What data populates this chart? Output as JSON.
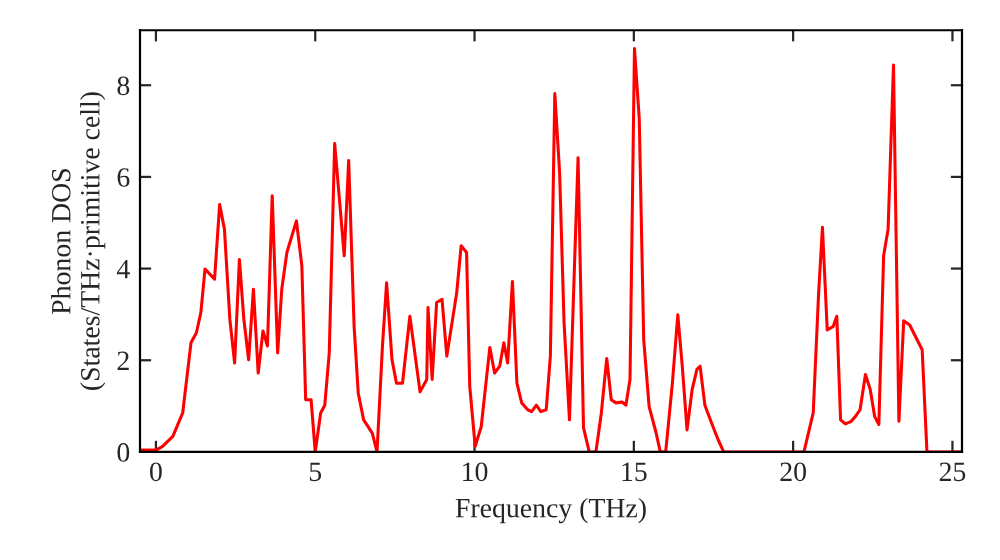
{
  "chart_data": {
    "type": "line",
    "xlabel": "Frequency (THz)",
    "ylabel": "Phonon DOS\n(States/THz·primitive cell)",
    "xlim": [
      -0.5,
      25.3
    ],
    "ylim": [
      0,
      9.2
    ],
    "xticks": [
      0,
      5,
      10,
      15,
      20,
      25
    ],
    "yticks": [
      0,
      2,
      4,
      6,
      8
    ],
    "grid": false,
    "legend": false,
    "marker": "none",
    "line_style": "solid",
    "series": [
      {
        "color": "#ff0000",
        "x": [
          -0.5,
          0,
          0.21,
          0.53,
          0.84,
          1.1,
          1.27,
          1.41,
          1.54,
          1.84,
          2.0,
          2.15,
          2.32,
          2.47,
          2.62,
          2.76,
          2.91,
          3.06,
          3.21,
          3.36,
          3.5,
          3.65,
          3.82,
          3.95,
          4.11,
          4.41,
          4.58,
          4.7,
          4.87,
          5.0,
          5.17,
          5.3,
          5.44,
          5.61,
          5.91,
          6.05,
          6.22,
          6.35,
          6.52,
          6.79,
          6.94,
          7.11,
          7.24,
          7.41,
          7.55,
          7.74,
          7.97,
          8.29,
          8.5,
          8.54,
          8.67,
          8.81,
          8.98,
          9.13,
          9.44,
          9.58,
          9.75,
          9.85,
          10.02,
          10.21,
          10.48,
          10.63,
          10.79,
          10.92,
          11.04,
          11.19,
          11.33,
          11.48,
          11.67,
          11.79,
          11.94,
          12.08,
          12.25,
          12.38,
          12.52,
          12.67,
          12.81,
          12.98,
          13.13,
          13.25,
          13.42,
          13.6,
          13.81,
          13.98,
          14.15,
          14.29,
          14.44,
          14.63,
          14.75,
          14.88,
          15.02,
          15.17,
          15.31,
          15.48,
          15.69,
          15.83,
          16.0,
          16.21,
          16.38,
          16.52,
          16.67,
          16.83,
          16.98,
          17.08,
          17.23,
          17.44,
          17.65,
          17.82,
          20.34,
          20.63,
          20.8,
          20.92,
          21.07,
          21.26,
          21.37,
          21.49,
          21.64,
          21.81,
          21.95,
          22.1,
          22.27,
          22.42,
          22.56,
          22.69,
          22.84,
          22.98,
          23.15,
          23.32,
          23.47,
          23.66,
          23.78,
          24.05,
          24.2,
          25.3
        ],
        "values": [
          0.04,
          0.04,
          0.12,
          0.34,
          0.85,
          2.38,
          2.6,
          3.04,
          3.99,
          3.77,
          5.4,
          4.86,
          2.89,
          1.94,
          4.2,
          2.89,
          2.01,
          3.55,
          1.72,
          2.64,
          2.31,
          5.59,
          2.16,
          3.55,
          4.35,
          5.04,
          4.06,
          1.14,
          1.14,
          0,
          0.85,
          1.02,
          2.16,
          6.73,
          4.28,
          6.36,
          2.74,
          1.28,
          0.7,
          0.41,
          0,
          2.31,
          3.69,
          2.01,
          1.5,
          1.5,
          2.96,
          1.31,
          1.58,
          3.15,
          1.58,
          3.26,
          3.33,
          2.09,
          3.47,
          4.5,
          4.35,
          1.43,
          0.12,
          0.55,
          2.28,
          1.72,
          1.87,
          2.38,
          1.94,
          3.72,
          1.5,
          1.07,
          0.92,
          0.88,
          1.02,
          0.88,
          0.92,
          2.09,
          7.82,
          6.1,
          2.82,
          0.7,
          3.91,
          6.42,
          0.53,
          0,
          0,
          0.85,
          2.04,
          1.14,
          1.07,
          1.09,
          1.02,
          1.58,
          8.8,
          7.27,
          2.45,
          0.99,
          0.44,
          0,
          0,
          1.5,
          2.99,
          1.87,
          0.48,
          1.36,
          1.8,
          1.87,
          1.02,
          0.63,
          0.26,
          0,
          0,
          0.85,
          3.47,
          4.9,
          2.66,
          2.74,
          2.96,
          0.7,
          0.61,
          0.66,
          0.77,
          0.92,
          1.69,
          1.36,
          0.77,
          0.6,
          4.28,
          4.86,
          8.44,
          0.67,
          2.86,
          2.77,
          2.6,
          2.23,
          0,
          0
        ]
      }
    ]
  }
}
